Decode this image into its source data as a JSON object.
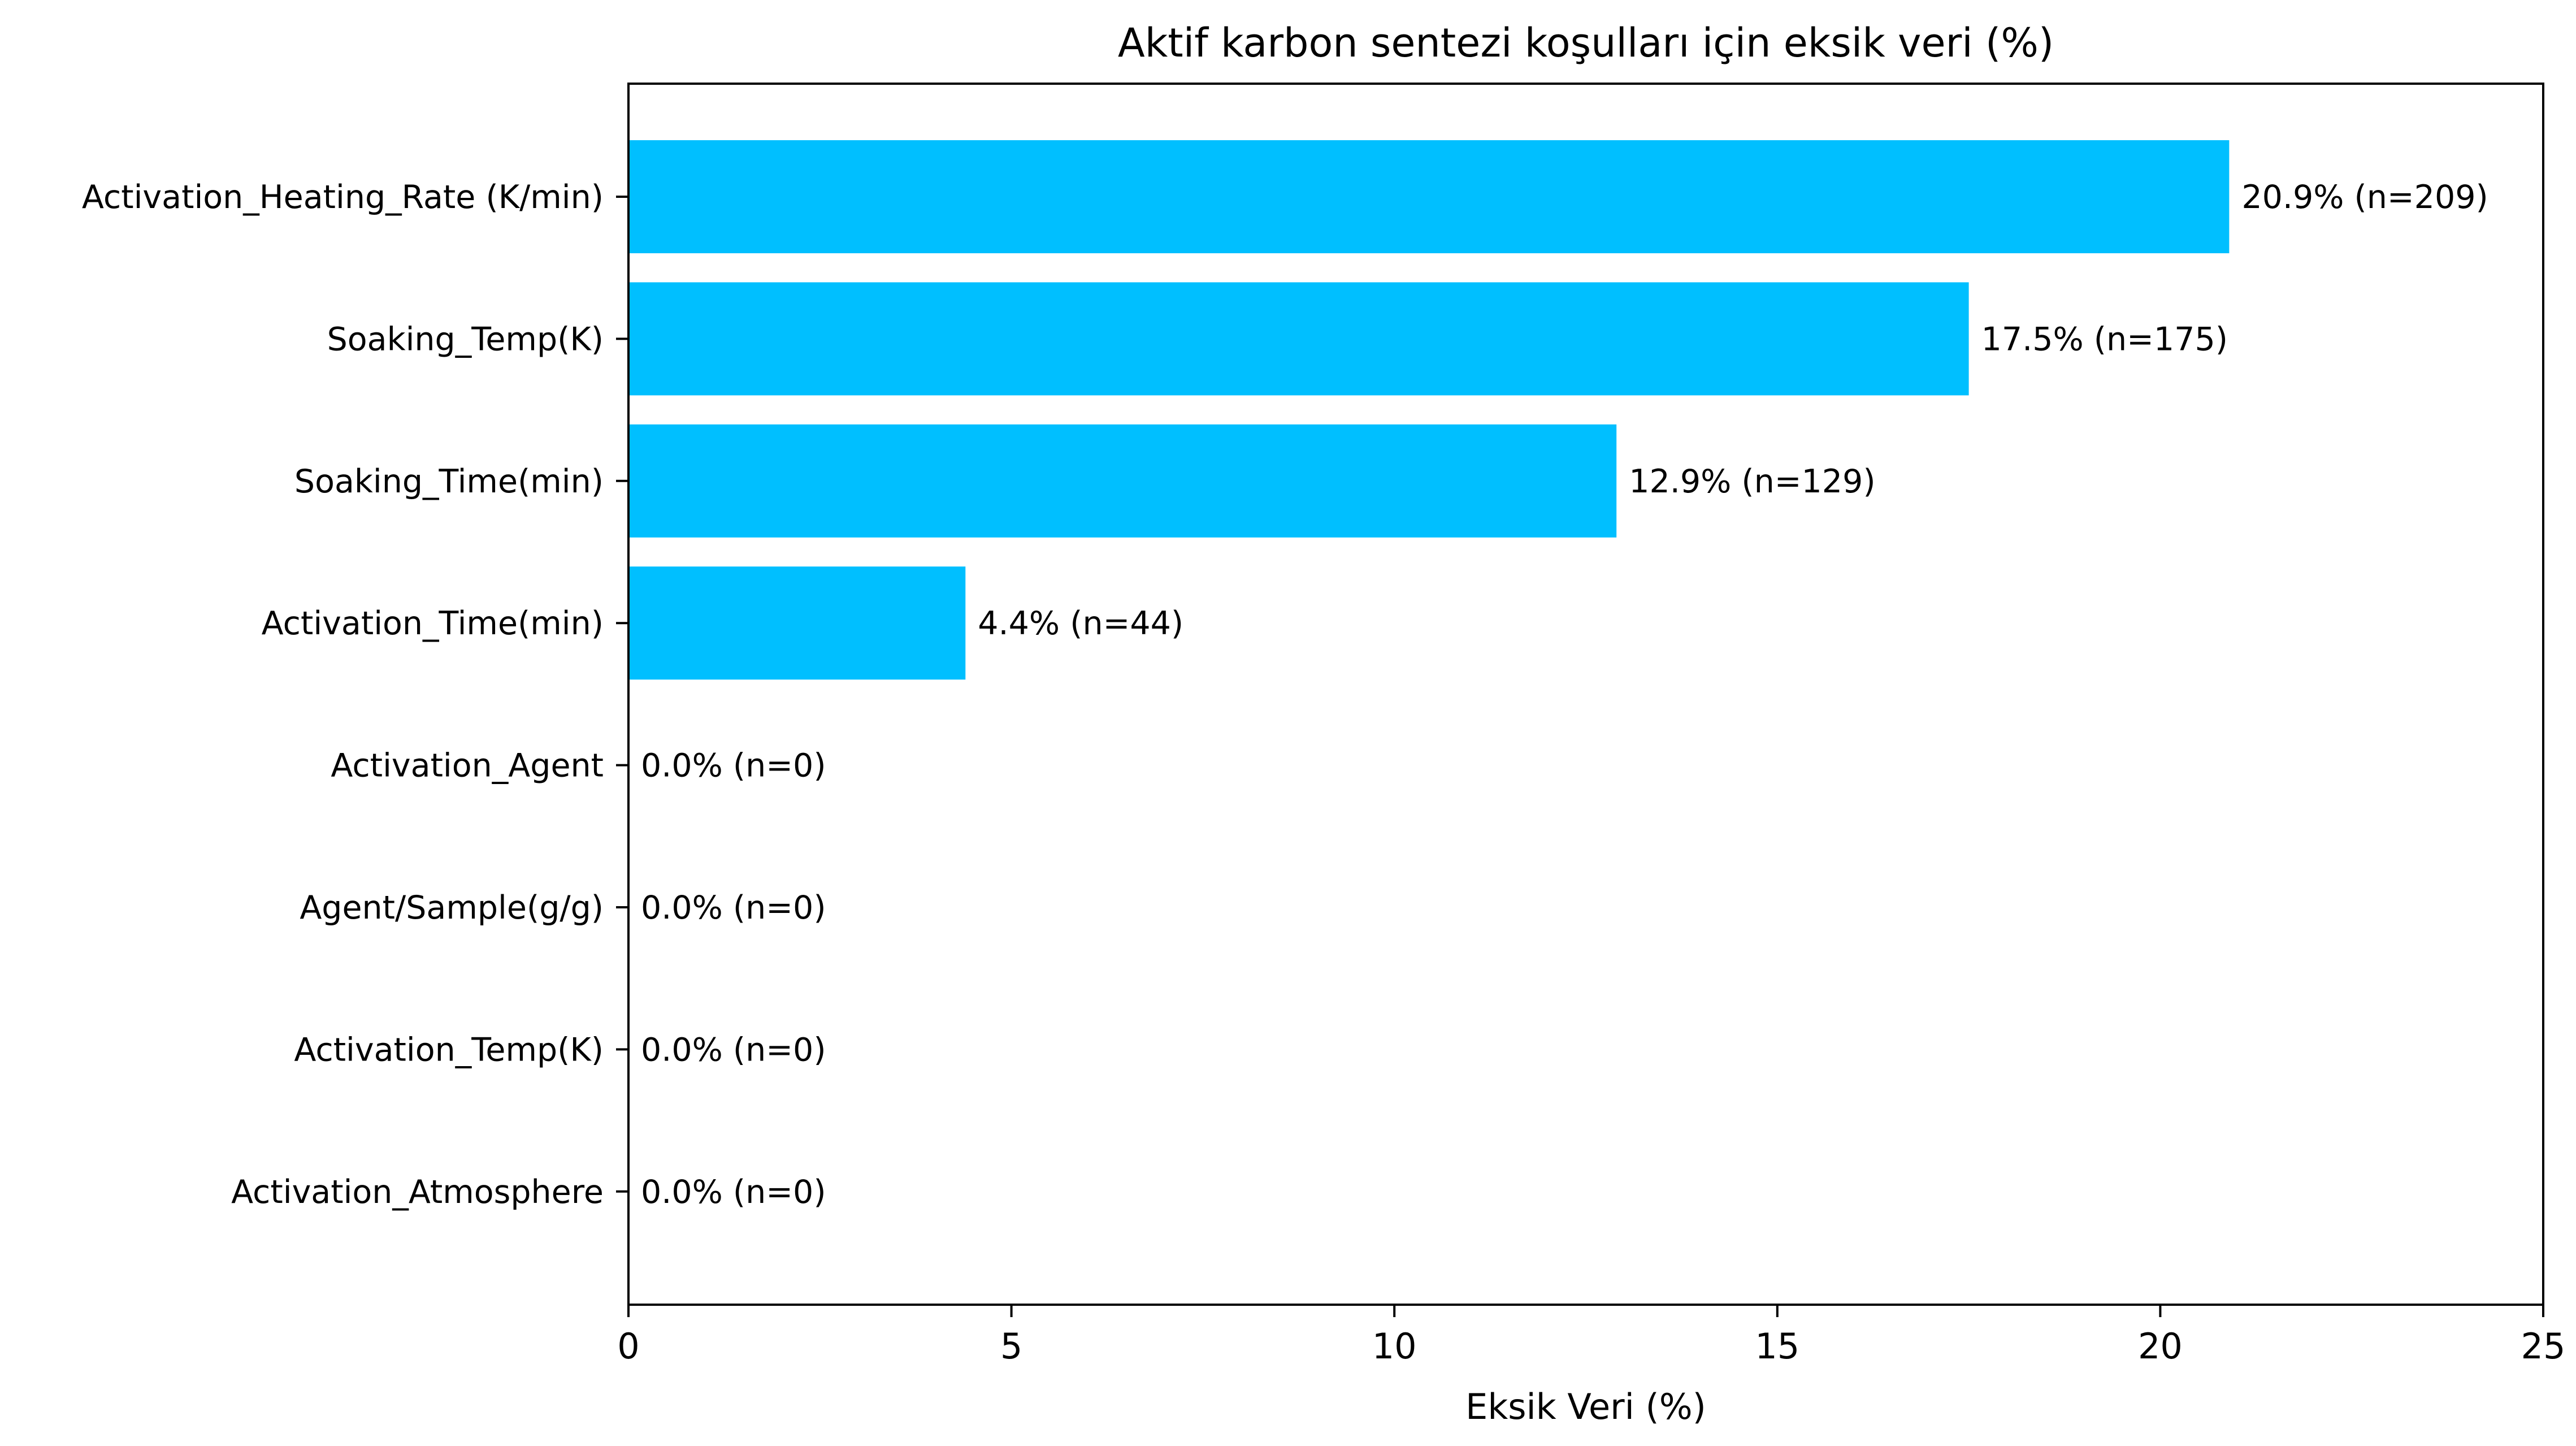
{
  "chart_data": {
    "type": "bar",
    "orientation": "horizontal",
    "title": "Aktif karbon sentezi koşulları için eksik veri (%)",
    "xlabel": "Eksik Veri (%)",
    "ylabel": "",
    "xlim": [
      0,
      25
    ],
    "xticks": [
      0,
      5,
      10,
      15,
      20,
      25
    ],
    "grid": false,
    "bar_color": "#00BFFF",
    "categories": [
      "Activation_Heating_Rate (K/min)",
      "Soaking_Temp(K)",
      "Soaking_Time(min)",
      "Activation_Time(min)",
      "Activation_Agent",
      "Agent/Sample(g/g)",
      "Activation_Temp(K)",
      "Activation_Atmosphere"
    ],
    "values": [
      20.9,
      17.5,
      12.9,
      4.4,
      0.0,
      0.0,
      0.0,
      0.0
    ],
    "data_labels": [
      "20.9% (n=209)",
      "17.5% (n=175)",
      "12.9% (n=129)",
      "4.4% (n=44)",
      "0.0% (n=0)",
      "0.0% (n=0)",
      "0.0% (n=0)",
      "0.0% (n=0)"
    ]
  }
}
